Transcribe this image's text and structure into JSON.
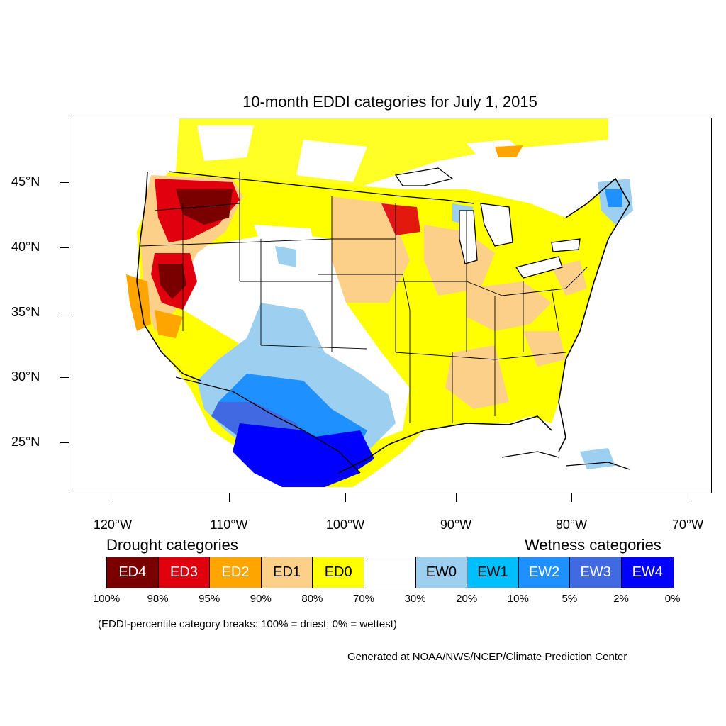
{
  "title": "10-month EDDI categories for July 1, 2015",
  "map": {
    "lat_ticks": [
      {
        "label": "45°N",
        "lat": 45
      },
      {
        "label": "40°N",
        "lat": 40
      },
      {
        "label": "35°N",
        "lat": 35
      },
      {
        "label": "30°N",
        "lat": 30
      },
      {
        "label": "25°N",
        "lat": 25
      }
    ],
    "lon_ticks": [
      {
        "label": "120°W",
        "lon": -120
      },
      {
        "label": "110°W",
        "lon": -110
      },
      {
        "label": "100°W",
        "lon": -100
      },
      {
        "label": "90°W",
        "lon": -90
      },
      {
        "label": "80°W",
        "lon": -80
      },
      {
        "label": "70°W",
        "lon": -70
      }
    ],
    "extent": {
      "lon": [
        -124,
        -68
      ],
      "lat": [
        21,
        50
      ]
    }
  },
  "legend": {
    "drought_heading": "Drought categories",
    "wetness_heading": "Wetness categories",
    "categories": [
      {
        "label": "ED4",
        "color": "#7a0000",
        "text_color": "#ffffff"
      },
      {
        "label": "ED3",
        "color": "#e0000e",
        "text_color": "#ffffff"
      },
      {
        "label": "ED2",
        "color": "#ffa500",
        "text_color": "#ffffff"
      },
      {
        "label": "ED1",
        "color": "#fdd08a",
        "text_color": "#000000"
      },
      {
        "label": "ED0",
        "color": "#ffff00",
        "text_color": "#000000"
      },
      {
        "label": "",
        "color": "#ffffff",
        "text_color": "#000000"
      },
      {
        "label": "EW0",
        "color": "#9dcff0",
        "text_color": "#000000"
      },
      {
        "label": "EW1",
        "color": "#00bfff",
        "text_color": "#000000"
      },
      {
        "label": "EW2",
        "color": "#1e90ff",
        "text_color": "#ffffff"
      },
      {
        "label": "EW3",
        "color": "#4169e1",
        "text_color": "#ffffff"
      },
      {
        "label": "EW4",
        "color": "#0000ff",
        "text_color": "#ffffff"
      }
    ],
    "percentiles": [
      "100%",
      "98%",
      "95%",
      "90%",
      "80%",
      "70%",
      "30%",
      "20%",
      "10%",
      "5%",
      "2%",
      "0%"
    ],
    "note": "(EDDI-percentile category breaks: 100% = driest; 0% = wettest)"
  },
  "credit": "Generated at NOAA/NWS/NCEP/Climate Prediction Center"
}
